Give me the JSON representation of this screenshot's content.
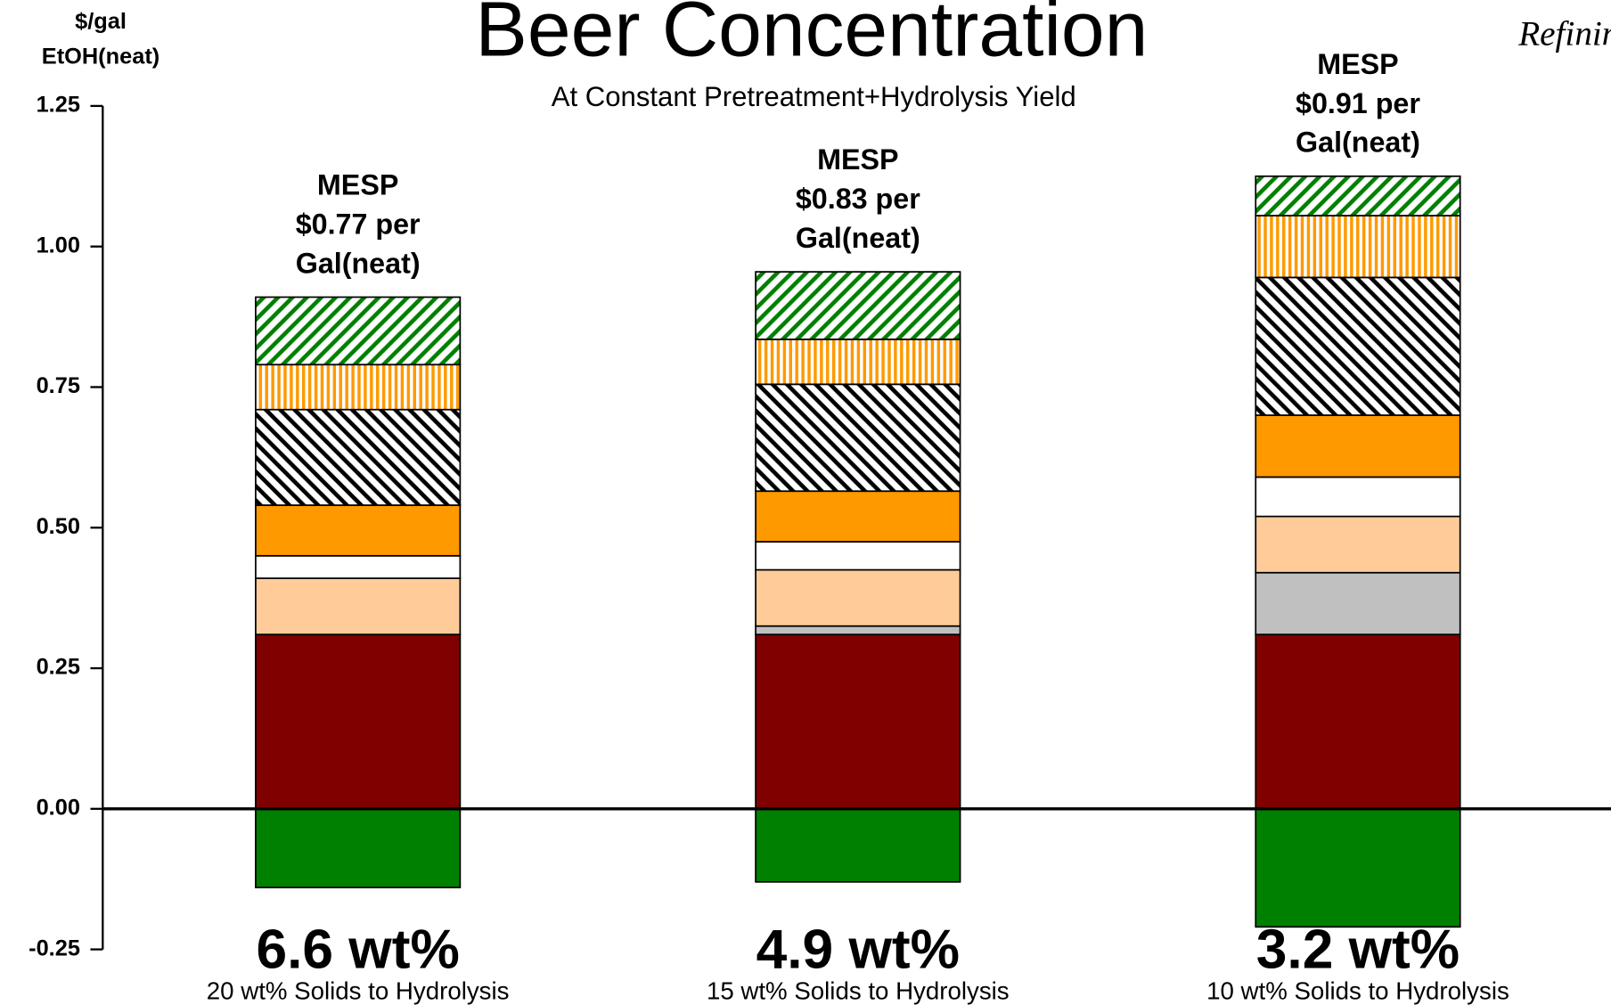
{
  "chart_data": {
    "type": "stacked-bar",
    "title": "Beer Concentration",
    "subtitle": "At Constant Pretreatment+Hydrolysis Yield",
    "y_label_lines": [
      "$/gal",
      "EtOH(neat)"
    ],
    "logo_text": "Refinin",
    "categories": [
      "6.6 wt%",
      "4.9 wt%",
      "3.2 wt%"
    ],
    "category_sublabels": [
      "20 wt% Solids to Hydrolysis",
      "15 wt% Solids to Hydrolysis",
      "10 wt% Solids to Hydrolysis"
    ],
    "annotations": [
      [
        "MESP",
        "$0.77 per",
        "Gal(neat)"
      ],
      [
        "MESP",
        "$0.83 per",
        "Gal(neat)"
      ],
      [
        "MESP",
        "$0.91 per",
        "Gal(neat)"
      ]
    ],
    "series": [
      {
        "color": "#008000",
        "pattern": "solid",
        "values": [
          -0.14,
          -0.13,
          -0.21
        ]
      },
      {
        "color": "#800000",
        "pattern": "solid",
        "values": [
          0.31,
          0.31,
          0.31
        ]
      },
      {
        "color": "#c0c0c0",
        "pattern": "solid",
        "values": [
          0,
          0.015,
          0.11
        ]
      },
      {
        "color": "#ffcc99",
        "pattern": "solid",
        "values": [
          0.1,
          0.1,
          0.1
        ]
      },
      {
        "color": "#ffffff",
        "pattern": "solid",
        "values": [
          0.04,
          0.05,
          0.07
        ]
      },
      {
        "color": "#ff9900",
        "pattern": "solid",
        "values": [
          0.09,
          0.09,
          0.11
        ]
      },
      {
        "color": "#000000",
        "pattern": "backslash",
        "values": [
          0.17,
          0.19,
          0.245
        ]
      },
      {
        "color": "#ff9900",
        "pattern": "vertical",
        "values": [
          0.08,
          0.08,
          0.11
        ]
      },
      {
        "color": "#008000",
        "pattern": "slash",
        "values": [
          0.12,
          0.12,
          0.07
        ]
      }
    ],
    "ylim": [
      -0.25,
      1.25
    ],
    "yticks": [
      {
        "value": -0.25,
        "label": "-0.25"
      },
      {
        "value": 0,
        "label": "0.00"
      },
      0.25,
      {
        "value": 0.5,
        "label": "0.50"
      },
      0.75,
      {
        "value": 1,
        "label": "1.00"
      },
      1.25
    ],
    "title_color": "#0000c0",
    "logo_color": "#00a000"
  }
}
